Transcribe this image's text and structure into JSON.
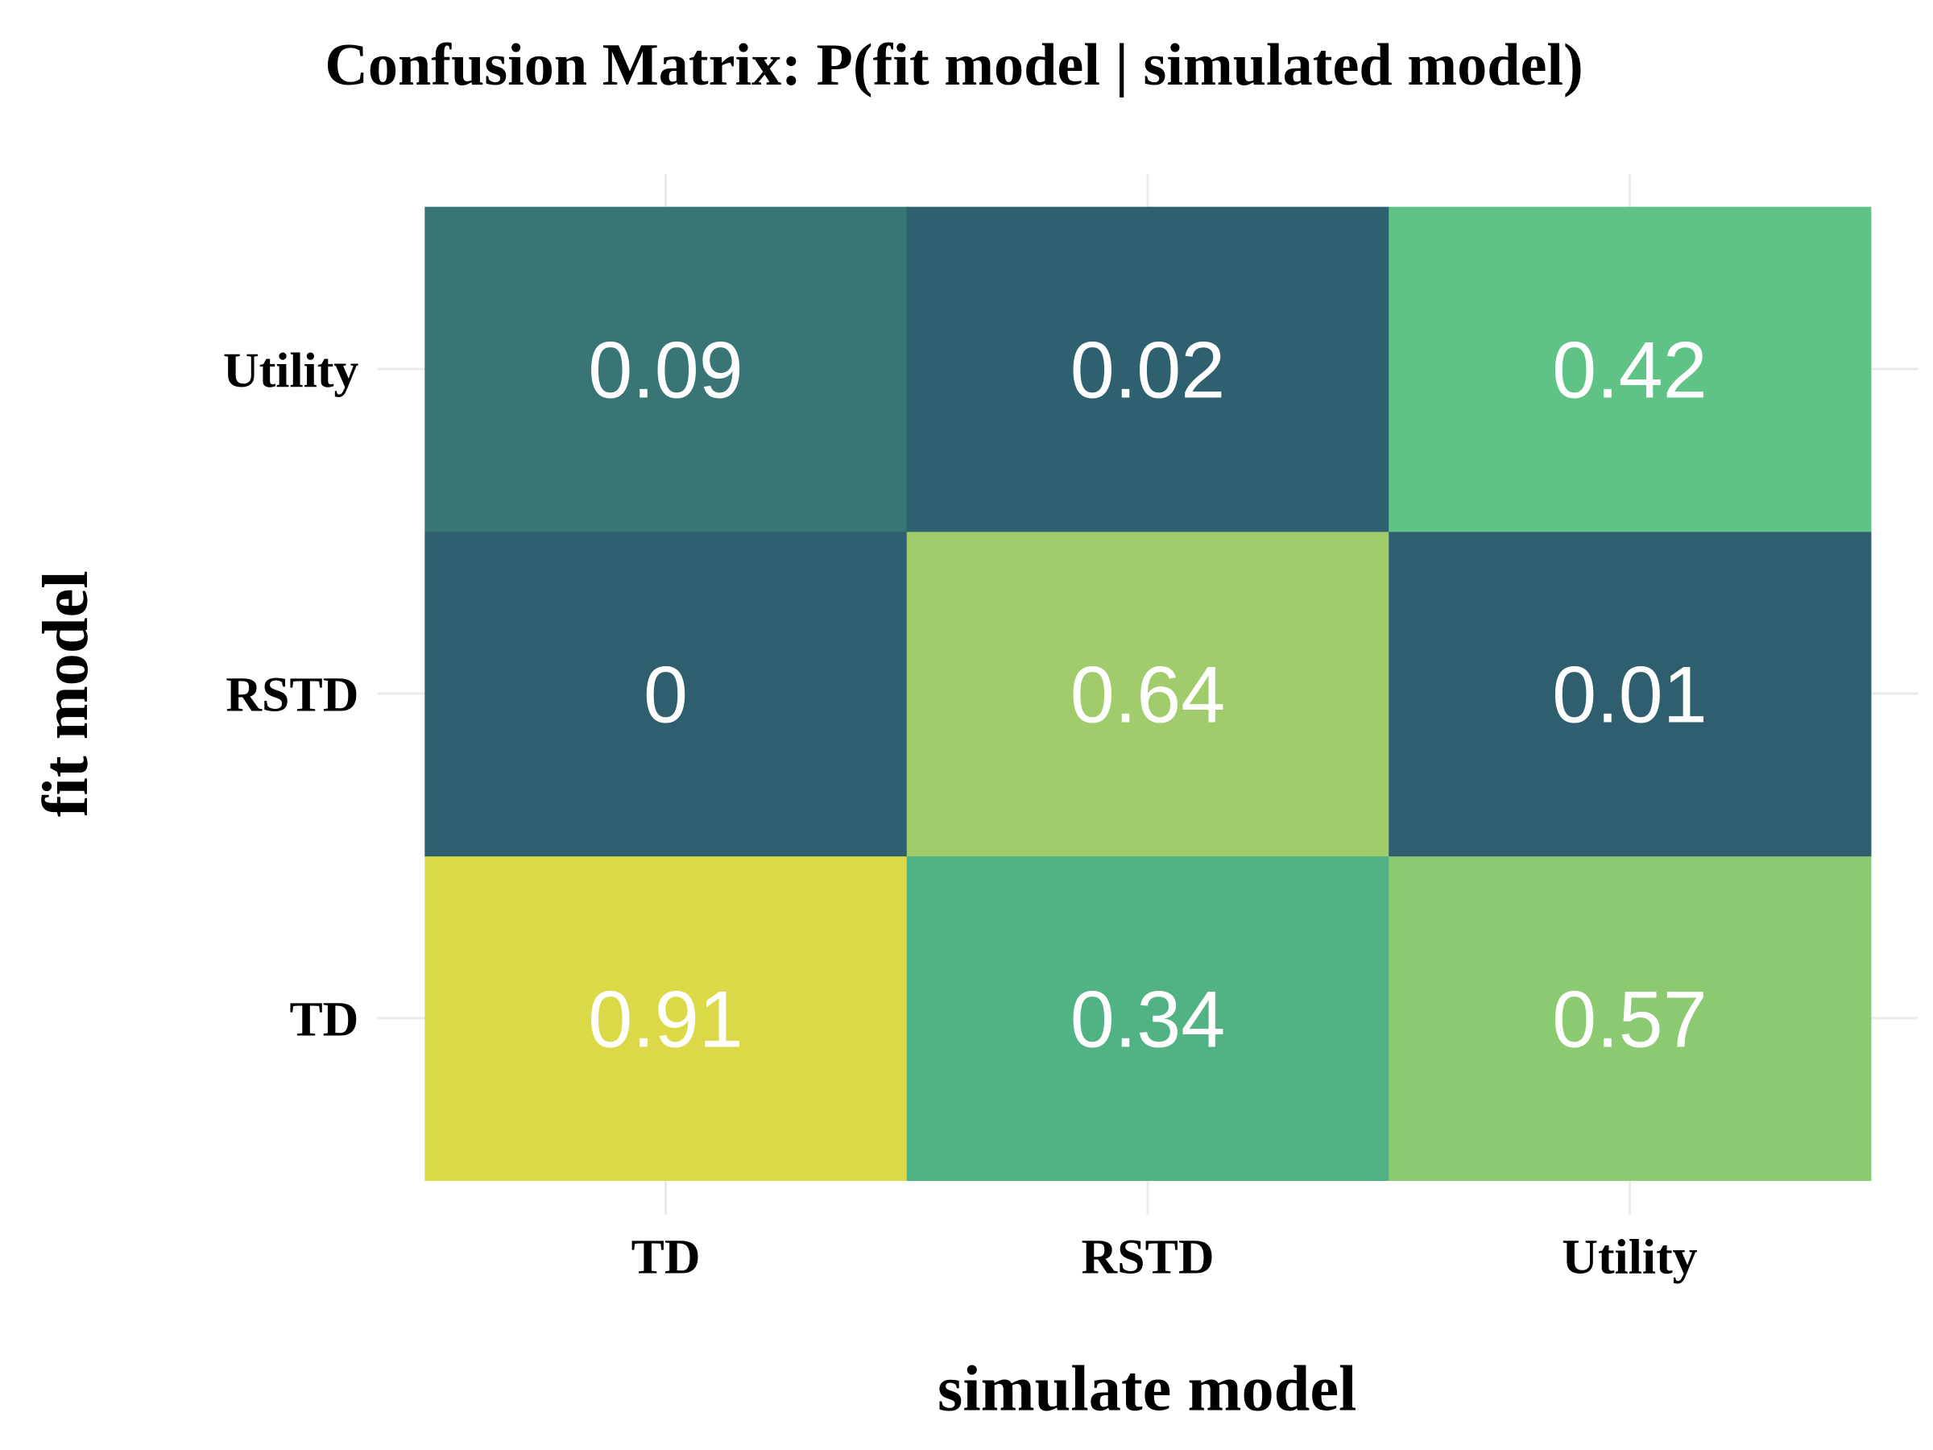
{
  "chart_data": {
    "type": "heatmap",
    "title": "Confusion Matrix: P(fit model | simulated model)",
    "xlabel": "simulate model",
    "ylabel": "fit model",
    "x_categories": [
      "TD",
      "RSTD",
      "Utility"
    ],
    "y_categories": [
      "TD",
      "RSTD",
      "Utility"
    ],
    "values": [
      [
        0.91,
        0.34,
        0.57
      ],
      [
        0,
        0.64,
        0.01
      ],
      [
        0.09,
        0.02,
        0.42
      ]
    ],
    "value_labels": [
      [
        "0.91",
        "0.34",
        "0.57"
      ],
      [
        "0",
        "0.64",
        "0.01"
      ],
      [
        "0.09",
        "0.02",
        "0.42"
      ]
    ],
    "cell_colors": [
      [
        "#dcd948",
        "#51b283",
        "#8bca71"
      ],
      [
        "#2f5e6f",
        "#a0cc6c",
        "#2f5e6f"
      ],
      [
        "#3a7575",
        "#2f6070",
        "#5ec384"
      ]
    ],
    "label_color": "#ffffff",
    "grid": true,
    "legend": "none"
  }
}
